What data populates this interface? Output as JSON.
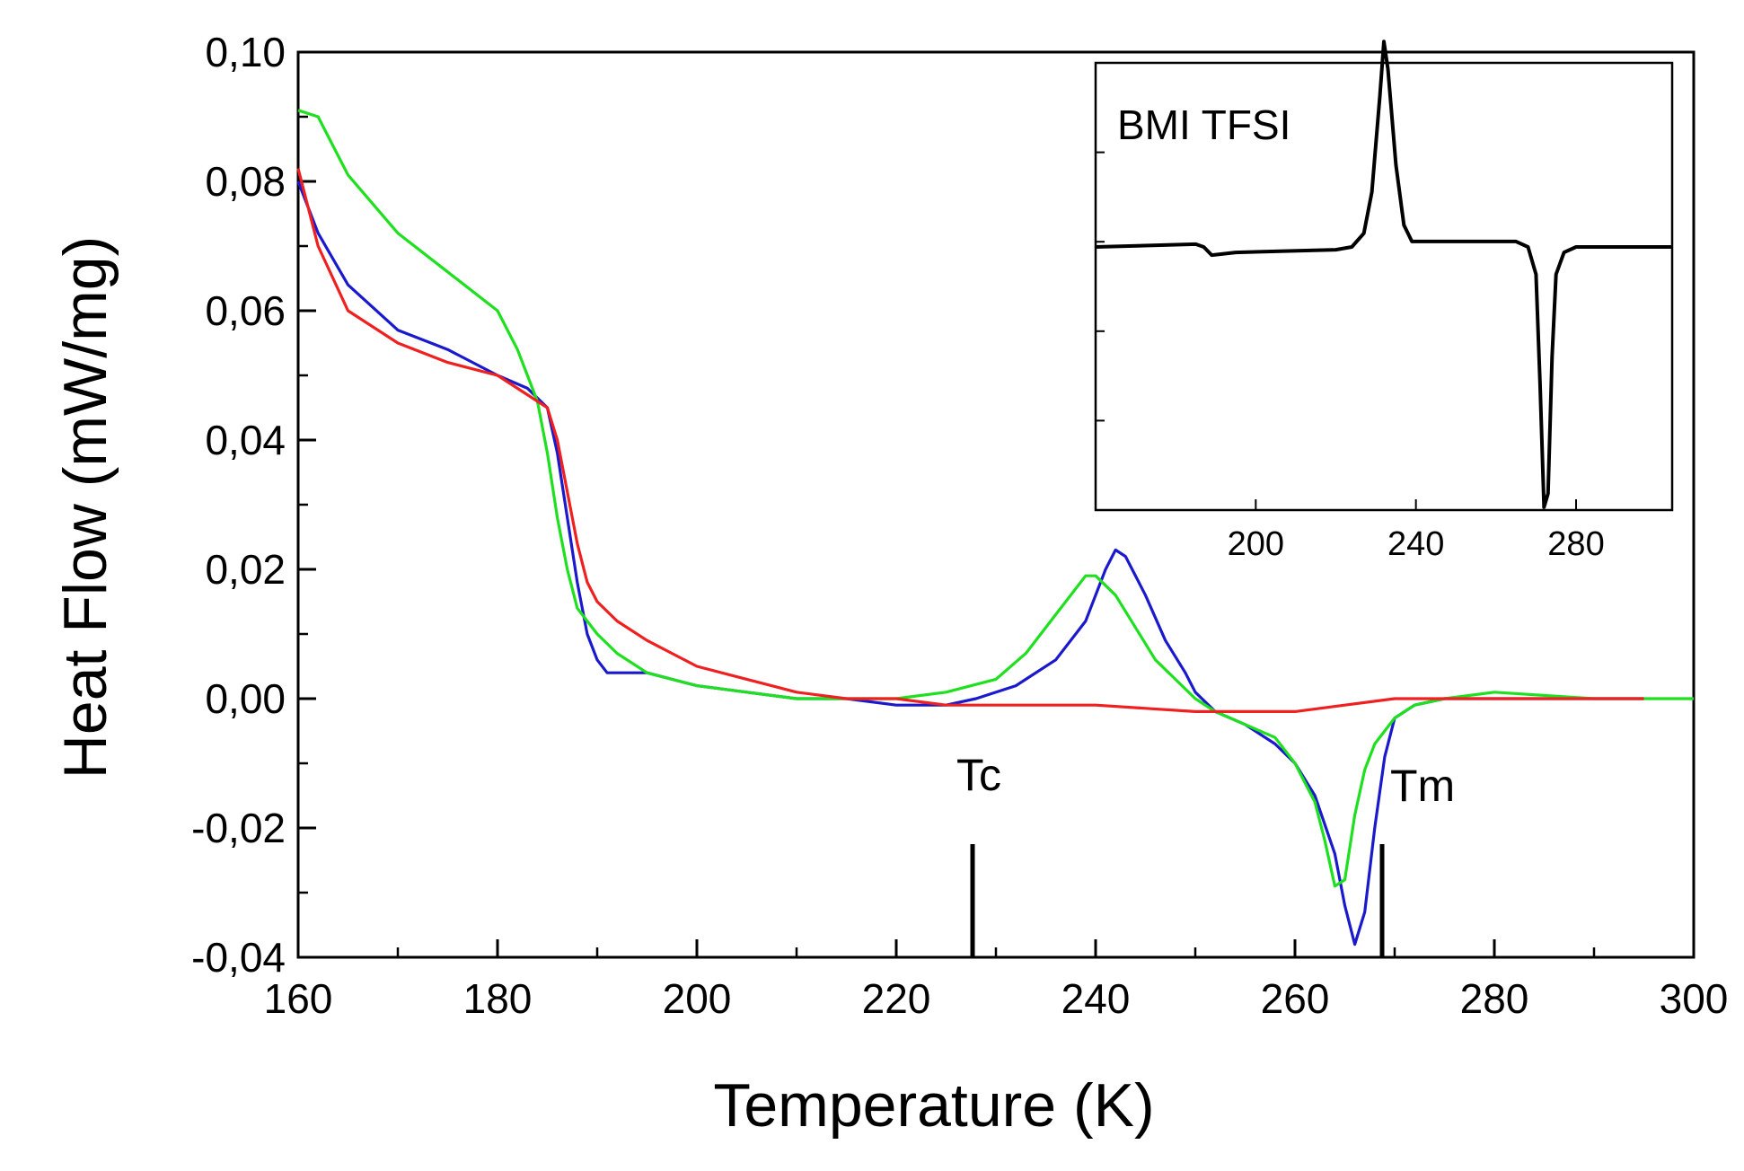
{
  "chart_data": [
    {
      "type": "line",
      "title": "",
      "xlabel": "Temperature (K)",
      "ylabel": "Heat Flow (mW/mg)",
      "xlim": [
        160,
        300
      ],
      "ylim": [
        -0.04,
        0.1
      ],
      "x_ticks": [
        160,
        180,
        200,
        220,
        240,
        260,
        280,
        300
      ],
      "x_tick_labels": [
        "160",
        "180",
        "200",
        "220",
        "240",
        "260",
        "280",
        "300"
      ],
      "y_ticks": [
        -0.04,
        -0.02,
        0.0,
        0.02,
        0.04,
        0.06,
        0.08,
        0.1
      ],
      "y_tick_labels": [
        "-0,04",
        "-0,02",
        "0,00",
        "0,02",
        "0,04",
        "0,06",
        "0,08",
        "0,10"
      ],
      "grid": false,
      "series": [
        {
          "name": "blue",
          "color": "#1a1acc",
          "points": [
            [
              160,
              0.08
            ],
            [
              162,
              0.072
            ],
            [
              165,
              0.064
            ],
            [
              170,
              0.057
            ],
            [
              175,
              0.054
            ],
            [
              180,
              0.05
            ],
            [
              183,
              0.048
            ],
            [
              185,
              0.045
            ],
            [
              186,
              0.038
            ],
            [
              187,
              0.028
            ],
            [
              188,
              0.018
            ],
            [
              189,
              0.01
            ],
            [
              190,
              0.006
            ],
            [
              191,
              0.004
            ],
            [
              195,
              0.004
            ],
            [
              200,
              0.002
            ],
            [
              205,
              0.001
            ],
            [
              210,
              0.0
            ],
            [
              215,
              0.0
            ],
            [
              220,
              -0.001
            ],
            [
              225,
              -0.001
            ],
            [
              228,
              0.0
            ],
            [
              232,
              0.002
            ],
            [
              236,
              0.006
            ],
            [
              239,
              0.012
            ],
            [
              241,
              0.02
            ],
            [
              242,
              0.023
            ],
            [
              243,
              0.022
            ],
            [
              245,
              0.016
            ],
            [
              247,
              0.009
            ],
            [
              249,
              0.004
            ],
            [
              250,
              0.001
            ],
            [
              252,
              -0.002
            ],
            [
              255,
              -0.004
            ],
            [
              258,
              -0.007
            ],
            [
              260,
              -0.01
            ],
            [
              262,
              -0.015
            ],
            [
              264,
              -0.024
            ],
            [
              265,
              -0.032
            ],
            [
              266,
              -0.038
            ],
            [
              267,
              -0.033
            ],
            [
              268,
              -0.02
            ],
            [
              269,
              -0.009
            ],
            [
              270,
              -0.003
            ],
            [
              272,
              -0.001
            ],
            [
              275,
              0.0
            ],
            [
              280,
              0.0
            ],
            [
              290,
              0.0
            ],
            [
              295,
              0.0
            ]
          ]
        },
        {
          "name": "green",
          "color": "#1fe01f",
          "points": [
            [
              160,
              0.091
            ],
            [
              162,
              0.09
            ],
            [
              165,
              0.081
            ],
            [
              170,
              0.072
            ],
            [
              175,
              0.066
            ],
            [
              180,
              0.06
            ],
            [
              182,
              0.054
            ],
            [
              183,
              0.05
            ],
            [
              184,
              0.046
            ],
            [
              185,
              0.038
            ],
            [
              186,
              0.028
            ],
            [
              187,
              0.02
            ],
            [
              188,
              0.014
            ],
            [
              190,
              0.01
            ],
            [
              192,
              0.007
            ],
            [
              195,
              0.004
            ],
            [
              200,
              0.002
            ],
            [
              205,
              0.001
            ],
            [
              210,
              0.0
            ],
            [
              220,
              0.0
            ],
            [
              225,
              0.001
            ],
            [
              230,
              0.003
            ],
            [
              233,
              0.007
            ],
            [
              236,
              0.013
            ],
            [
              239,
              0.019
            ],
            [
              240,
              0.019
            ],
            [
              242,
              0.016
            ],
            [
              244,
              0.011
            ],
            [
              246,
              0.006
            ],
            [
              248,
              0.003
            ],
            [
              250,
              0.0
            ],
            [
              252,
              -0.002
            ],
            [
              255,
              -0.004
            ],
            [
              258,
              -0.006
            ],
            [
              260,
              -0.01
            ],
            [
              262,
              -0.016
            ],
            [
              263,
              -0.022
            ],
            [
              264,
              -0.029
            ],
            [
              265,
              -0.028
            ],
            [
              266,
              -0.018
            ],
            [
              267,
              -0.011
            ],
            [
              268,
              -0.007
            ],
            [
              270,
              -0.003
            ],
            [
              272,
              -0.001
            ],
            [
              275,
              0.0
            ],
            [
              280,
              0.001
            ],
            [
              290,
              0.0
            ],
            [
              300,
              0.0
            ]
          ]
        },
        {
          "name": "red",
          "color": "#ee2020",
          "points": [
            [
              160,
              0.082
            ],
            [
              162,
              0.07
            ],
            [
              165,
              0.06
            ],
            [
              170,
              0.055
            ],
            [
              175,
              0.052
            ],
            [
              180,
              0.05
            ],
            [
              183,
              0.047
            ],
            [
              185,
              0.045
            ],
            [
              186,
              0.04
            ],
            [
              187,
              0.032
            ],
            [
              188,
              0.024
            ],
            [
              189,
              0.018
            ],
            [
              190,
              0.015
            ],
            [
              192,
              0.012
            ],
            [
              195,
              0.009
            ],
            [
              200,
              0.005
            ],
            [
              205,
              0.003
            ],
            [
              210,
              0.001
            ],
            [
              215,
              0.0
            ],
            [
              220,
              0.0
            ],
            [
              225,
              -0.001
            ],
            [
              230,
              -0.001
            ],
            [
              240,
              -0.001
            ],
            [
              250,
              -0.002
            ],
            [
              255,
              -0.002
            ],
            [
              260,
              -0.002
            ],
            [
              265,
              -0.001
            ],
            [
              270,
              0.0
            ],
            [
              275,
              0.0
            ],
            [
              280,
              0.0
            ],
            [
              290,
              0.0
            ],
            [
              295,
              0.0
            ]
          ]
        }
      ],
      "annotations": [
        {
          "text": "Tc",
          "x": 228
        },
        {
          "text": "Tm",
          "x": 269
        }
      ]
    },
    {
      "type": "line",
      "title": "BMI TFSI",
      "xlim": [
        160,
        304
      ],
      "x_ticks": [
        200,
        240,
        280
      ],
      "x_tick_labels": [
        "200",
        "240",
        "280"
      ],
      "ylim": [
        -1.0,
        1.0
      ],
      "series": [
        {
          "name": "BMI TFSI",
          "color": "#000000",
          "points": [
            [
              160,
              0.0
            ],
            [
              185,
              0.01
            ],
            [
              187,
              0.0
            ],
            [
              189,
              -0.03
            ],
            [
              195,
              -0.02
            ],
            [
              220,
              -0.01
            ],
            [
              224,
              0.0
            ],
            [
              227,
              0.05
            ],
            [
              229,
              0.2
            ],
            [
              231,
              0.55
            ],
            [
              232,
              0.75
            ],
            [
              233,
              0.65
            ],
            [
              235,
              0.3
            ],
            [
              237,
              0.08
            ],
            [
              239,
              0.02
            ],
            [
              242,
              0.02
            ],
            [
              255,
              0.02
            ],
            [
              265,
              0.02
            ],
            [
              268,
              0.0
            ],
            [
              270,
              -0.1
            ],
            [
              271,
              -0.5
            ],
            [
              272,
              -0.95
            ],
            [
              273,
              -0.9
            ],
            [
              274,
              -0.4
            ],
            [
              275,
              -0.1
            ],
            [
              277,
              -0.02
            ],
            [
              280,
              0.0
            ],
            [
              290,
              0.0
            ],
            [
              304,
              0.0
            ]
          ]
        }
      ]
    }
  ]
}
